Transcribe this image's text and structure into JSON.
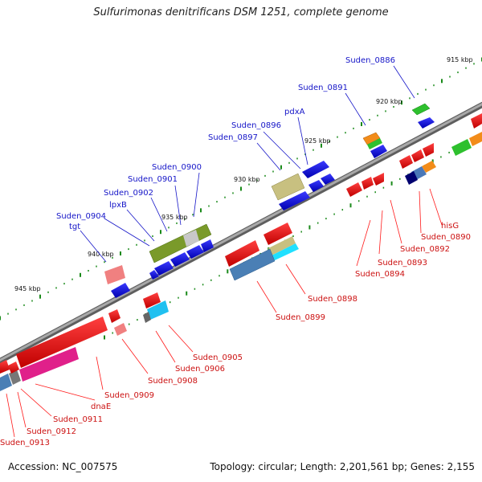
{
  "title": "Sulfurimonas denitrificans DSM 1251, complete genome",
  "footer": {
    "accession": "Accession: NC_007575",
    "summary": "Topology: circular; Length: 2,201,561 bp; Genes: 2,155"
  },
  "colors": {
    "backbone": "#8a8a8a",
    "label_forward": "#1515c8",
    "label_reverse": "#cc1111",
    "tick": "#1a8a1a"
  },
  "ticks": [
    "915 kbp",
    "920 kbp",
    "925 kbp",
    "930 kbp",
    "935 kbp",
    "940 kbp",
    "945 kbp"
  ],
  "gene_labels_forward": [
    "Suden_0886",
    "Suden_0891",
    "pdxA",
    "Suden_0896",
    "Suden_0897",
    "Suden_0900",
    "Suden_0901",
    "Suden_0902",
    "lpxB",
    "Suden_0904",
    "tgt"
  ],
  "gene_labels_reverse": [
    "hisG",
    "Suden_0890",
    "Suden_0892",
    "Suden_0893",
    "Suden_0894",
    "Suden_0898",
    "Suden_0899",
    "Suden_0905",
    "Suden_0906",
    "Suden_0908",
    "Suden_0909",
    "dnaE",
    "Suden_0911",
    "Suden_0912",
    "Suden_0913"
  ]
}
